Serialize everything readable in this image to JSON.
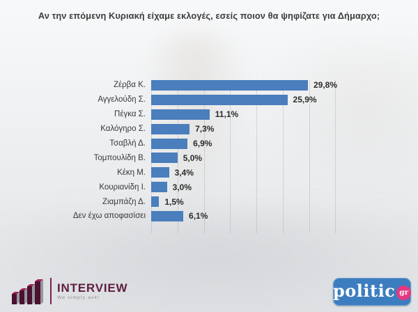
{
  "title": "Αν την επόμενη Κυριακή είχαμε εκλογές, εσείς ποιον θα ψηφίζατε για Δήμαρχο;",
  "chart_data": {
    "type": "bar",
    "orientation": "horizontal",
    "categories": [
      "Ζέρβα Κ.",
      "Αγγελούδη Σ.",
      "Πέγκα Σ.",
      "Καλόγηρο Σ.",
      "Τσαβλή Δ.",
      "Τομπουλίδη Β.",
      "Κέκη Μ.",
      "Κουριανίδη Ι.",
      "Ζιαμπάζη Δ.",
      "Δεν έχω αποφασίσει"
    ],
    "values": [
      29.8,
      25.9,
      11.1,
      7.3,
      6.9,
      5.0,
      3.4,
      3.0,
      1.5,
      6.1
    ],
    "value_labels": [
      "29,8%",
      "25,9%",
      "11,1%",
      "7,3%",
      "6,9%",
      "5,0%",
      "3,4%",
      "3,0%",
      "1,5%",
      "6,1%"
    ],
    "xlim": [
      0,
      35
    ],
    "gridline_step": 5,
    "grid": true,
    "legend": false,
    "bar_color": "#4a7ebc",
    "value_label_position": "outside-end"
  },
  "footer": {
    "interview": {
      "name": "INTERVIEW",
      "tagline": "We simply ask!",
      "brand_color": "#5e1d40",
      "icon": "ascending-3d-bars-icon"
    },
    "politic": {
      "text": "politic",
      "suffix": "gr",
      "bg_color": "#3c7dc0",
      "badge_color": "#e5397f"
    }
  }
}
